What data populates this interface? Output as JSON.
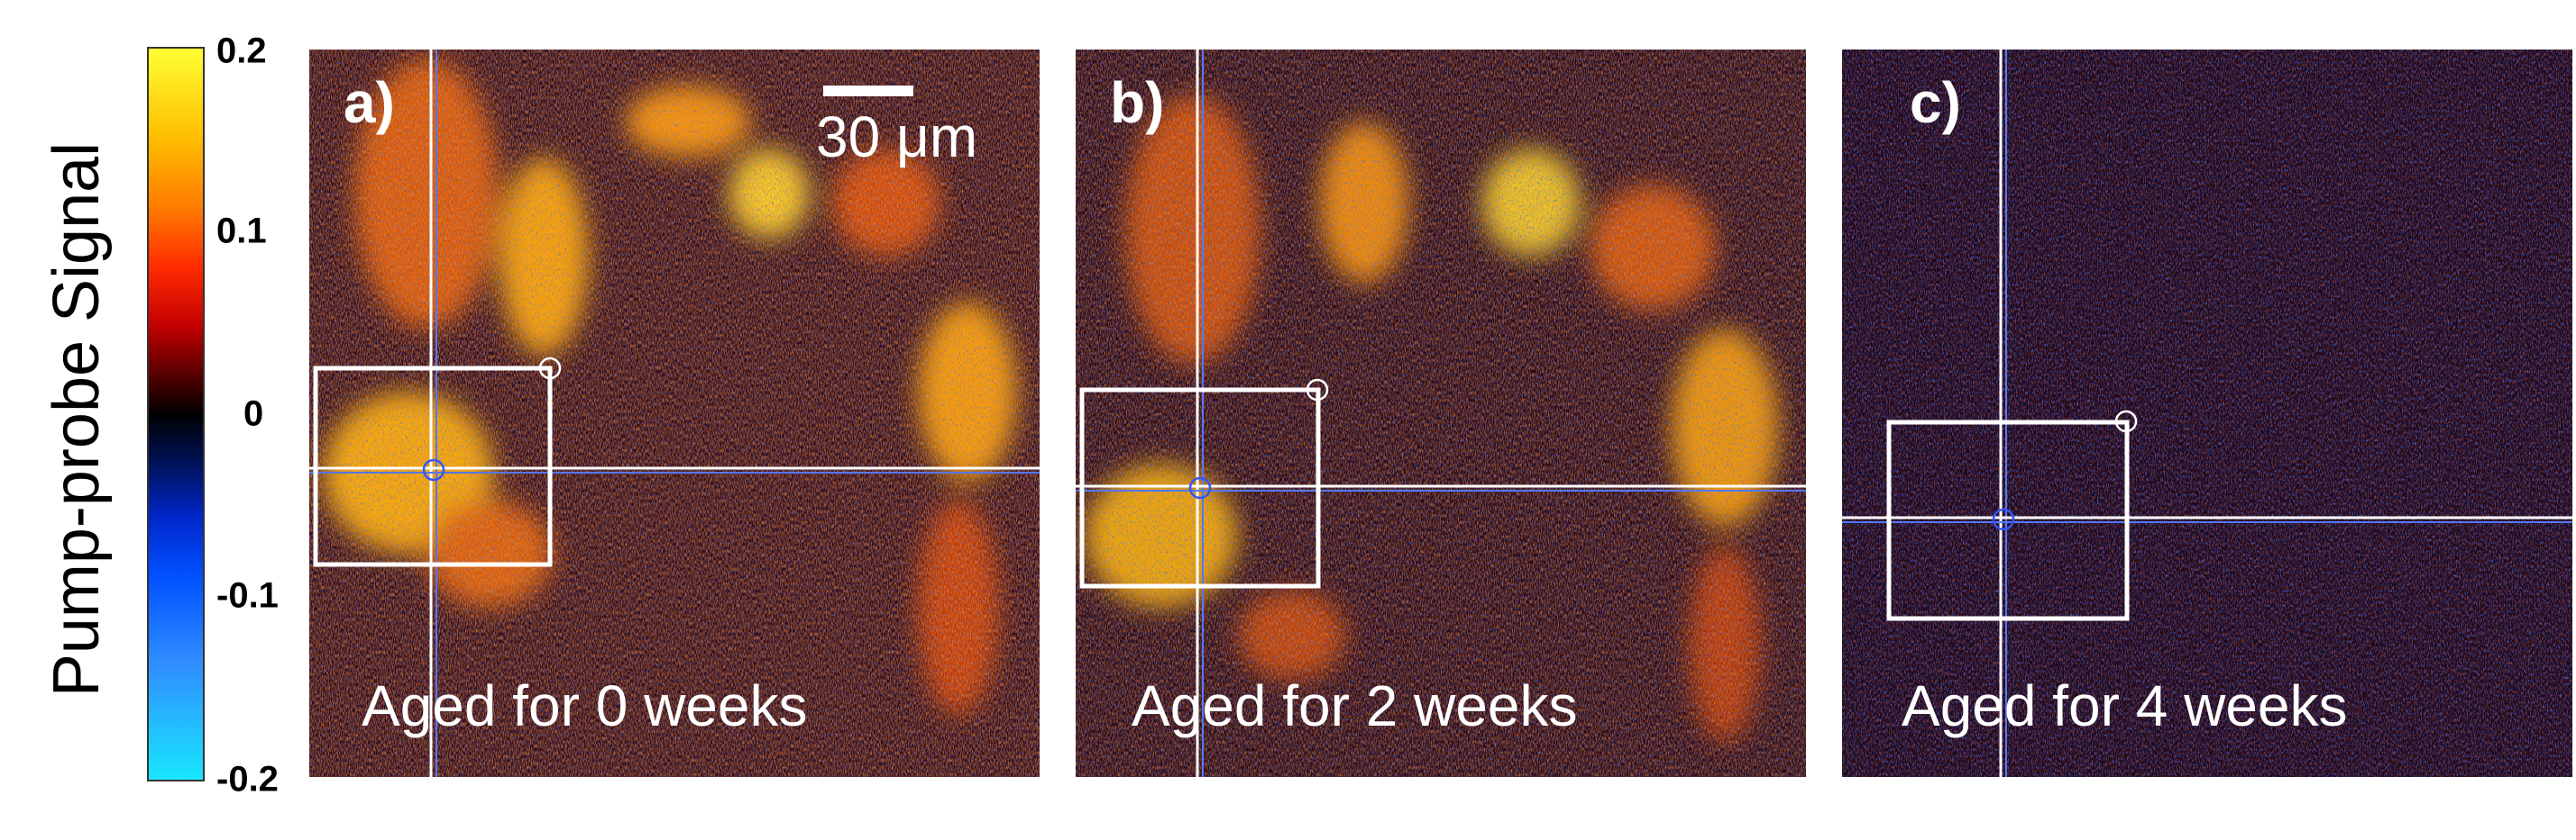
{
  "colorbar": {
    "label": "Pump-probe Signal",
    "ticks": [
      "0.2",
      "0.1",
      "0",
      "-0.1",
      "-0.2"
    ],
    "range": [
      -0.2,
      0.2
    ]
  },
  "scale_bar": {
    "label": "30 μm"
  },
  "panels": [
    {
      "label": "a)",
      "caption": "Aged for 0 weeks"
    },
    {
      "label": "b)",
      "caption": "Aged for 2 weeks"
    },
    {
      "label": "c)",
      "caption": "Aged for 4 weeks"
    }
  ],
  "colors": {
    "background": "#2a0a1a",
    "bright": "#ffd21f",
    "mid": "#e04a00",
    "noise_blue": "#0033cc",
    "overlay": "#ffffff"
  }
}
